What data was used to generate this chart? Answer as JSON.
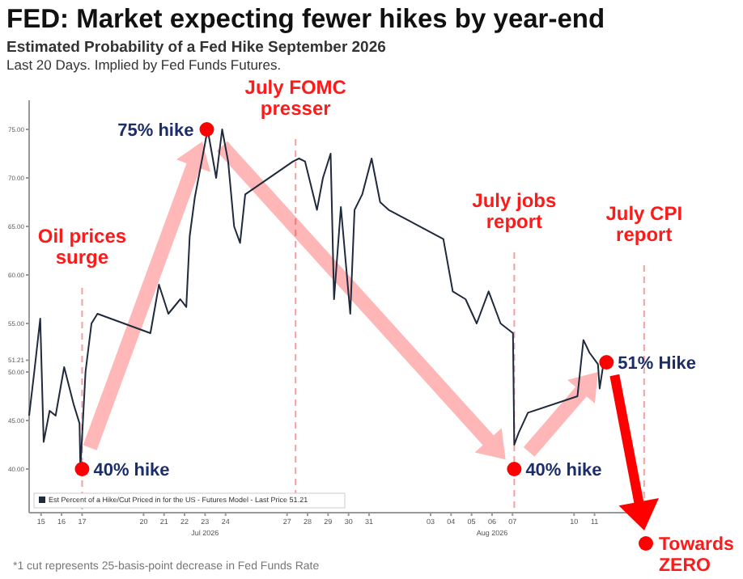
{
  "chart_data": {
    "type": "line",
    "title": "FED: Market expecting fewer hikes by year-end",
    "subtitle": "Estimated Probability of a Fed Hike September 2026\nLast 20 Days. Implied by Fed Funds Futures.",
    "series": [
      {
        "name": "Est Percent of a Hike/Cut Priced in for the US - Futures Model - Last Price 51.21",
        "color": "#1f2a3c",
        "x": [
          "2026-07-14T10:00",
          "2026-07-14T16:00",
          "2026-07-14T23:00",
          "2026-07-15T03:00",
          "2026-07-15T10:00",
          "2026-07-15T17:00",
          "2026-07-16T03:00",
          "2026-07-16T14:00",
          "2026-07-16T21:00",
          "2026-07-16T22:00",
          "2026-07-17T04:00",
          "2026-07-17T11:00",
          "2026-07-17T18:00",
          "2026-07-20T08:00",
          "2026-07-20T18:00",
          "2026-07-21T05:00",
          "2026-07-21T19:00",
          "2026-07-22T02:00",
          "2026-07-22T06:00",
          "2026-07-22T12:00",
          "2026-07-22T20:00",
          "2026-07-23T03:00",
          "2026-07-23T08:00",
          "2026-07-23T13:00",
          "2026-07-23T20:00",
          "2026-07-24T03:00",
          "2026-07-24T10:00",
          "2026-07-24T17:00",
          "2026-07-24T23:00",
          "2026-07-27T07:00",
          "2026-07-27T14:00",
          "2026-07-27T21:00",
          "2026-07-28T11:00",
          "2026-07-28T18:00",
          "2026-07-29T03:00",
          "2026-07-29T07:00",
          "2026-07-29T15:00",
          "2026-07-30T02:00",
          "2026-07-30T07:00",
          "2026-07-30T16:00",
          "2026-07-31T03:00",
          "2026-07-31T13:00",
          "2026-07-31T23:00",
          "2026-08-03T15:00",
          "2026-08-04T02:00",
          "2026-08-04T17:00",
          "2026-08-05T06:00",
          "2026-08-05T20:00",
          "2026-08-06T10:00",
          "2026-08-07T00:30",
          "2026-08-07T02:00",
          "2026-08-07T07:00",
          "2026-08-07T18:00",
          "2026-08-10T04:00",
          "2026-08-10T11:00",
          "2026-08-10T18:00",
          "2026-08-11T04:00",
          "2026-08-11T06:00",
          "2026-08-11T11:00"
        ],
        "values": [
          45.5,
          50,
          55.5,
          42.8,
          46,
          45.5,
          50.5,
          46.7,
          44.7,
          40,
          50,
          55,
          56,
          54,
          59,
          56,
          57.5,
          56.7,
          64,
          68,
          71.7,
          75,
          72.5,
          70,
          75,
          71.7,
          65,
          63.3,
          68.3,
          71.7,
          72,
          71.7,
          66.7,
          70,
          72.5,
          57.5,
          67,
          56,
          66.7,
          68.3,
          72,
          67.5,
          66.7,
          63.7,
          58.3,
          57.5,
          55,
          58.3,
          55,
          54,
          42.5,
          43.7,
          45.8,
          47.5,
          53.3,
          52,
          50.8,
          48.3,
          51.2
        ]
      }
    ],
    "xlim": [
      "2026-07-14T10:00",
      "2026-08-13T14:00"
    ],
    "xticks": [
      {
        "value": "2026-07-15",
        "label": "15"
      },
      {
        "value": "2026-07-16",
        "label": "16"
      },
      {
        "value": "2026-07-17",
        "label": "17"
      },
      {
        "value": "2026-07-20",
        "label": "20"
      },
      {
        "value": "2026-07-21",
        "label": "21"
      },
      {
        "value": "2026-07-22",
        "label": "22"
      },
      {
        "value": "2026-07-23",
        "label": "23\nJul 2026"
      },
      {
        "value": "2026-07-24",
        "label": "24"
      },
      {
        "value": "2026-07-27",
        "label": "27"
      },
      {
        "value": "2026-07-28",
        "label": "28"
      },
      {
        "value": "2026-07-29",
        "label": "29"
      },
      {
        "value": "2026-07-30",
        "label": "30"
      },
      {
        "value": "2026-07-31",
        "label": "31"
      },
      {
        "value": "2026-08-03",
        "label": "03"
      },
      {
        "value": "2026-08-04",
        "label": "04"
      },
      {
        "value": "2026-08-05",
        "label": "05"
      },
      {
        "value": "2026-08-06",
        "label": "06\nAug 2026"
      },
      {
        "value": "2026-08-07",
        "label": "07"
      },
      {
        "value": "2026-08-10",
        "label": "10"
      },
      {
        "value": "2026-08-11",
        "label": "11"
      }
    ],
    "ylim": [
      35.5,
      78
    ],
    "yticks": [
      {
        "value": 40,
        "label": "40.00"
      },
      {
        "value": 45,
        "label": "45.00"
      },
      {
        "value": 50,
        "label": "50.00"
      },
      {
        "value": 51.21,
        "label": "51.21"
      },
      {
        "value": 55,
        "label": "55.00"
      },
      {
        "value": 60,
        "label": "60.00"
      },
      {
        "value": 65,
        "label": "65.00"
      },
      {
        "value": 70,
        "label": "70.00"
      },
      {
        "value": 75,
        "label": "75.00"
      }
    ],
    "ref_lines": [
      {
        "axis": "x",
        "value": "2026-07-17",
        "label": "Oil prices surge",
        "color": "#f4a0a0",
        "line_style": "dashed"
      },
      {
        "axis": "x",
        "value": "2026-07-27T10:00",
        "label": "July FOMC presser",
        "color": "#f4a0a0",
        "line_style": "dashed"
      },
      {
        "axis": "x",
        "value": "2026-08-07T02:00",
        "label": "July jobs report",
        "color": "#f4a0a0",
        "line_style": "dashed"
      },
      {
        "axis": "x",
        "value": "2026-08-13T10:00",
        "label": "July CPI report",
        "color": "#f4a0a0",
        "line_style": "dashed"
      }
    ],
    "annotations": [
      {
        "text": "40% hike",
        "x": "2026-07-17",
        "y": 40
      },
      {
        "text": "75% hike",
        "x": "2026-07-23T02:00",
        "y": 75
      },
      {
        "text": "40% hike",
        "x": "2026-08-07T02:00",
        "y": 40
      },
      {
        "text": "51% Hike",
        "x": "2026-08-11T14:00",
        "y": 51
      },
      "Towards ZERO",
      "*1 cut represents 25-basis-point decrease in Fed Funds Rate"
    ],
    "legend": "bottom left",
    "grid": false,
    "line_style": "solid",
    "marker": "none"
  }
}
